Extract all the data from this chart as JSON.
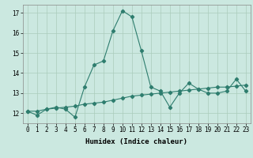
{
  "title": "",
  "xlabel": "Humidex (Indice chaleur)",
  "line_color": "#2E7D6E",
  "background_color": "#CBE8E0",
  "grid_color": "#AACCBB",
  "x_data": [
    0,
    1,
    2,
    3,
    4,
    5,
    6,
    7,
    8,
    9,
    10,
    11,
    12,
    13,
    14,
    15,
    16,
    17,
    18,
    19,
    20,
    21,
    22,
    23
  ],
  "y_data1": [
    12.1,
    11.9,
    12.2,
    12.3,
    12.2,
    11.8,
    13.3,
    14.4,
    14.6,
    16.1,
    17.1,
    16.8,
    15.1,
    13.3,
    13.1,
    12.3,
    13.0,
    13.5,
    13.2,
    13.0,
    13.0,
    13.1,
    13.7,
    13.1
  ],
  "y_data2": [
    12.1,
    12.1,
    12.2,
    12.25,
    12.3,
    12.35,
    12.45,
    12.5,
    12.55,
    12.65,
    12.75,
    12.85,
    12.9,
    12.95,
    13.0,
    13.05,
    13.1,
    13.15,
    13.2,
    13.25,
    13.3,
    13.3,
    13.35,
    13.4
  ],
  "xlim": [
    -0.5,
    23.5
  ],
  "ylim": [
    11.5,
    17.4
  ],
  "yticks": [
    12,
    13,
    14,
    15,
    16,
    17
  ],
  "xticks": [
    0,
    1,
    2,
    3,
    4,
    5,
    6,
    7,
    8,
    9,
    10,
    11,
    12,
    13,
    14,
    15,
    16,
    17,
    18,
    19,
    20,
    21,
    22,
    23
  ],
  "fontsize_label": 6.5,
  "fontsize_tick": 5.5,
  "line_width": 0.8,
  "marker_size": 2.2
}
